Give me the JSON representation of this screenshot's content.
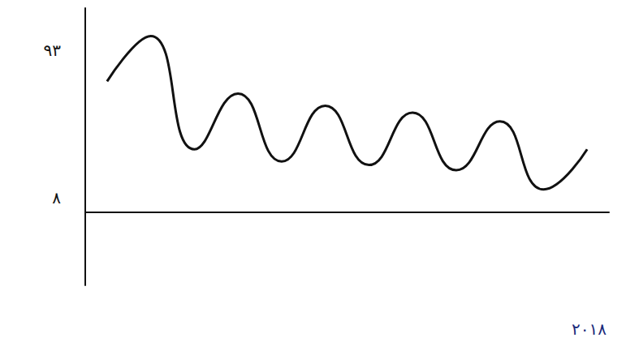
{
  "chart_data": {
    "type": "line",
    "xlabel": "٢٠١٨",
    "categories": [
      null,
      null,
      null,
      null,
      null,
      null,
      null,
      null,
      null,
      null,
      null,
      null
    ],
    "values": [
      75,
      101,
      36,
      68,
      29,
      61,
      27,
      57,
      24,
      52,
      13,
      36
    ],
    "color": "#111111",
    "ylim": [
      -42,
      117
    ],
    "yticks": [
      {
        "value": 93,
        "label": "٩٣"
      },
      {
        "value": 8,
        "label": "٨"
      }
    ],
    "grid": false,
    "marker": "none",
    "line_style": "solid"
  }
}
